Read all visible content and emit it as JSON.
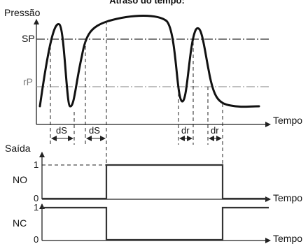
{
  "title": "Atraso do tempo:",
  "pressure_chart": {
    "y_label": "Pressão",
    "x_label": "Tempo",
    "sp_label": "SP",
    "rp_label": "rP",
    "delay_labels": [
      "dS",
      "dS",
      "dr",
      "dr"
    ]
  },
  "output": {
    "label": "Saída",
    "no": {
      "label": "NO",
      "level_high": "1",
      "level_low": "0",
      "x_label": "Tempo"
    },
    "nc": {
      "label": "NC",
      "level_high": "1",
      "level_low": "0",
      "x_label": "Tempo"
    }
  },
  "colors": {
    "line": "#111111",
    "setpoint": "#333333",
    "reset_point": "#9a9a9a",
    "signal": "#333333"
  }
}
